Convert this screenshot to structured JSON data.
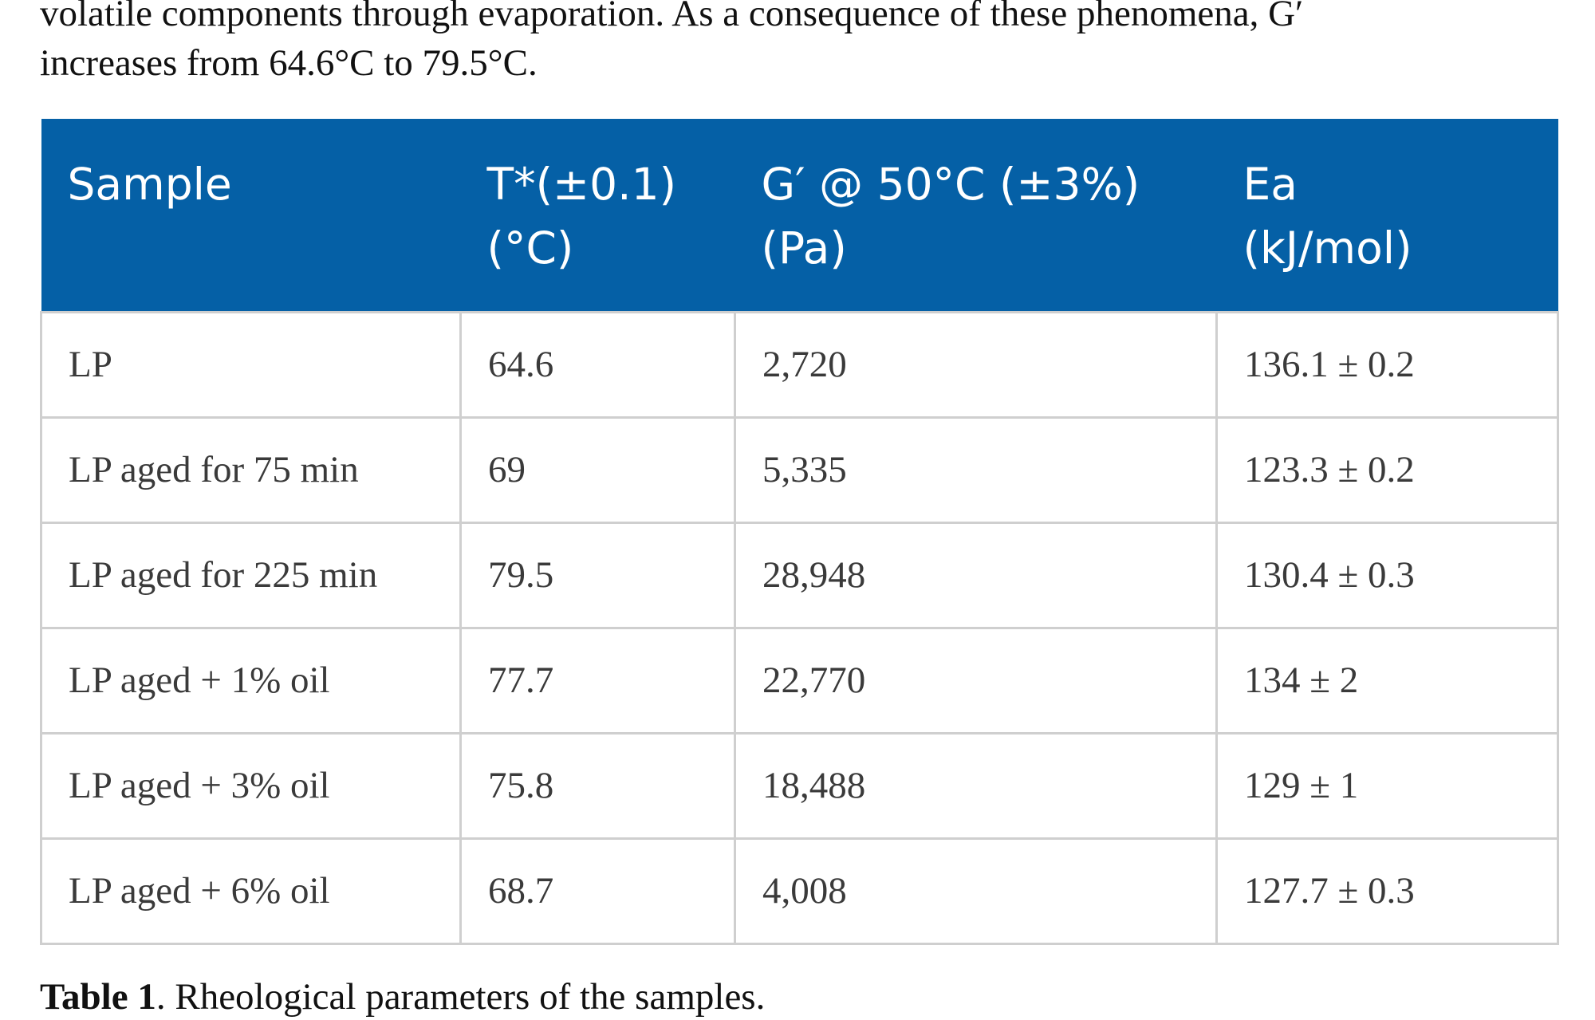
{
  "intro": {
    "line1": "volatile components through evaporation. As a consequence of these phenomena, G′",
    "line2": "increases from 64.6°C to 79.5°C."
  },
  "table": {
    "headers": [
      {
        "line1": "Sample",
        "line2": ""
      },
      {
        "line1": "T*(±0.1)",
        "line2": "(°C)"
      },
      {
        "line1": "G′ @ 50°C (±3%)",
        "line2": "(Pa)"
      },
      {
        "line1": "Ea",
        "line2": "(kJ/mol)"
      }
    ],
    "rows": [
      [
        "LP",
        "64.6",
        "2,720",
        "136.1 ± 0.2"
      ],
      [
        "LP aged for 75 min",
        "69",
        "5,335",
        "123.3 ± 0.2"
      ],
      [
        "LP aged for 225 min",
        "79.5",
        "28,948",
        "130.4 ± 0.3"
      ],
      [
        "LP aged + 1% oil",
        "77.7",
        "22,770",
        "134 ± 2"
      ],
      [
        "LP aged + 3% oil",
        "75.8",
        "18,488",
        "129 ± 1"
      ],
      [
        "LP aged + 6% oil",
        "68.7",
        "4,008",
        "127.7 ± 0.3"
      ]
    ],
    "colors": {
      "header_bg": "#0560a6",
      "header_text": "#ffffff",
      "grid": "#cfcfcf"
    }
  },
  "caption": {
    "label": "Table 1",
    "text": ". Rheological parameters of the samples."
  }
}
